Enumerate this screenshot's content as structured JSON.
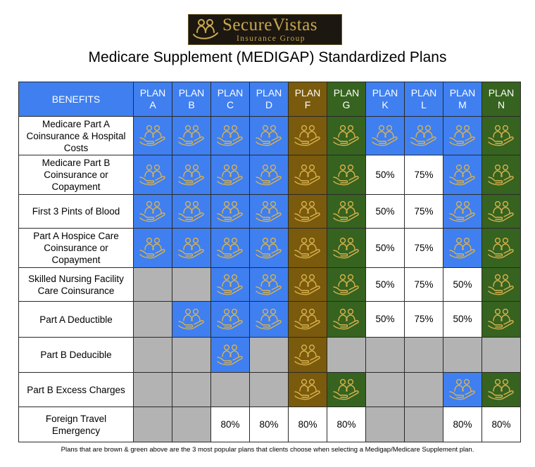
{
  "logo": {
    "name": "SecureVistas",
    "subtitle": "Insurance Group"
  },
  "title": "Medicare Supplement (MEDIGAP) Standardized Plans",
  "header": {
    "benefits_label": "BENEFITS"
  },
  "colors": {
    "blue": "#3f7ff0",
    "brown": "#7a5a0c",
    "green": "#36631f",
    "gray": "#b3b3b3",
    "icon_gold": "#d9b24e"
  },
  "plans": [
    {
      "line1": "PLAN",
      "line2": "A",
      "color": "blue"
    },
    {
      "line1": "PLAN",
      "line2": "B",
      "color": "blue"
    },
    {
      "line1": "PLAN",
      "line2": "C",
      "color": "blue"
    },
    {
      "line1": "PLAN",
      "line2": "D",
      "color": "blue"
    },
    {
      "line1": "PLAN",
      "line2": "F",
      "color": "brown"
    },
    {
      "line1": "PLAN",
      "line2": "G",
      "color": "green"
    },
    {
      "line1": "PLAN",
      "line2": "K",
      "color": "blue"
    },
    {
      "line1": "PLAN",
      "line2": "L",
      "color": "blue"
    },
    {
      "line1": "PLAN",
      "line2": "M",
      "color": "blue"
    },
    {
      "line1": "PLAN",
      "line2": "N",
      "color": "green"
    }
  ],
  "rows": [
    {
      "lines": [
        "Medicare Part A",
        "Coinsurance & Hospital",
        "Costs"
      ],
      "cells": [
        "icon",
        "icon",
        "icon",
        "icon",
        "icon",
        "icon",
        "icon",
        "icon",
        "icon",
        "icon"
      ]
    },
    {
      "lines": [
        "Medicare Part B",
        "Coinsurance or",
        "Copayment"
      ],
      "cells": [
        "icon",
        "icon",
        "icon",
        "icon",
        "icon",
        "icon",
        "50%",
        "75%",
        "icon",
        "icon"
      ]
    },
    {
      "lines": [
        "First 3 Pints of Blood"
      ],
      "cells": [
        "icon",
        "icon",
        "icon",
        "icon",
        "icon",
        "icon",
        "50%",
        "75%",
        "icon",
        "icon"
      ]
    },
    {
      "lines": [
        "Part A Hospice Care",
        "Coinsurance or",
        "Copayment"
      ],
      "cells": [
        "icon",
        "icon",
        "icon",
        "icon",
        "icon",
        "icon",
        "50%",
        "75%",
        "icon",
        "icon"
      ]
    },
    {
      "lines": [
        "Skilled Nursing Facility",
        "Care Coinsurance"
      ],
      "cells": [
        "none",
        "none",
        "icon",
        "icon",
        "icon",
        "icon",
        "50%",
        "75%",
        "50%",
        "icon"
      ]
    },
    {
      "lines": [
        "Part A Deductible"
      ],
      "cells": [
        "none",
        "icon",
        "icon",
        "icon",
        "icon",
        "icon",
        "50%",
        "75%",
        "50%",
        "icon"
      ]
    },
    {
      "lines": [
        "Part B Deducible"
      ],
      "cells": [
        "none",
        "none",
        "icon",
        "none",
        "icon",
        "none",
        "none",
        "none",
        "none",
        "none"
      ]
    },
    {
      "lines": [
        "Part B Excess Charges"
      ],
      "cells": [
        "none",
        "none",
        "none",
        "none",
        "icon",
        "icon",
        "none",
        "none",
        "icon",
        "icon"
      ]
    },
    {
      "lines": [
        "Foreign Travel",
        "Emergency"
      ],
      "cells": [
        "none",
        "none",
        "80%",
        "80%",
        "80%",
        "80%",
        "none",
        "none",
        "80%",
        "80%"
      ]
    }
  ],
  "footnote": "Plans that are brown & green above are the 3 most popular plans that clients choose when selecting a Medigap/Medicare Supplement plan."
}
